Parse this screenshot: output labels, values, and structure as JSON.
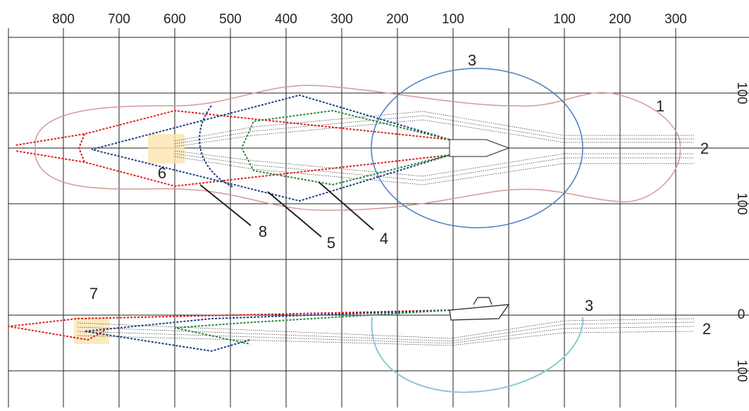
{
  "top_scale": [
    "800",
    "700",
    "600",
    "500",
    "400",
    "300",
    "200",
    "100",
    "100",
    "200",
    "300"
  ],
  "right_scale": [
    "100",
    "100",
    "0",
    "100"
  ],
  "callouts": [
    "1",
    "2",
    "3",
    "4",
    "5",
    "8",
    "6",
    "7",
    "3",
    "2"
  ]
}
